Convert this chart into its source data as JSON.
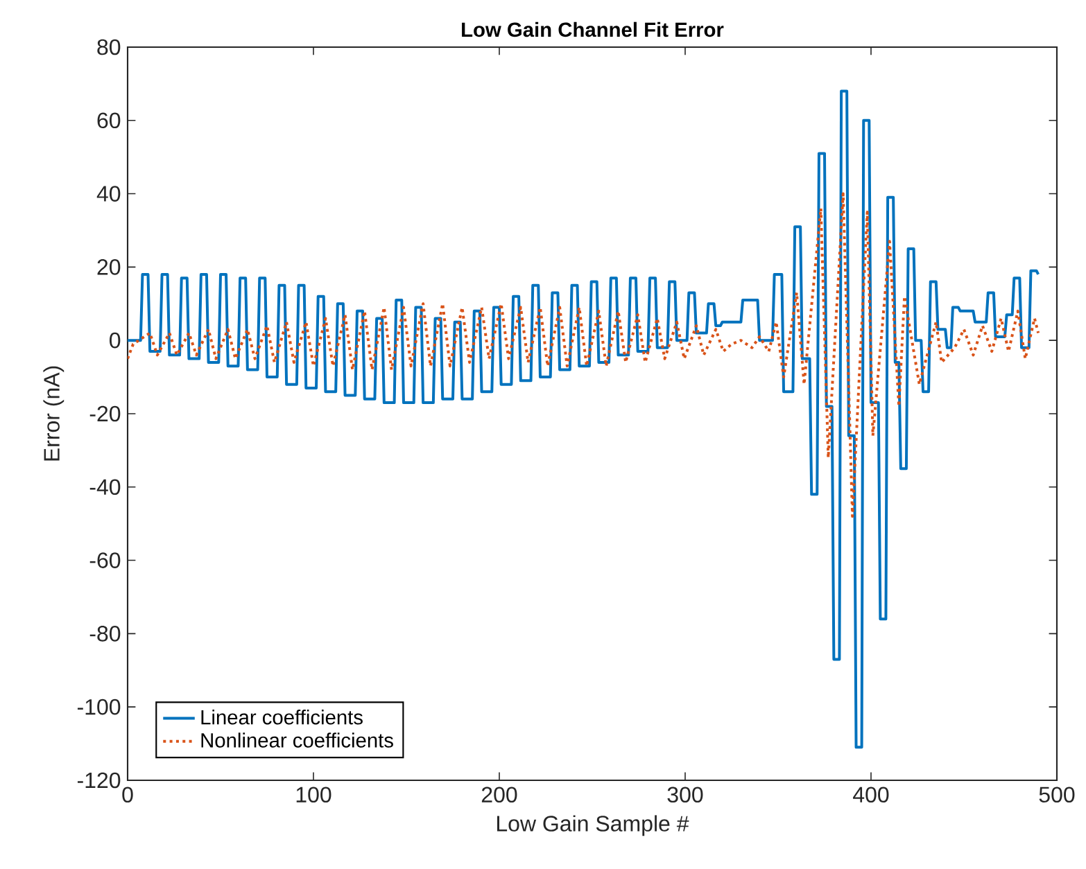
{
  "chart_data": {
    "type": "line",
    "title": "Low Gain Channel Fit Error",
    "xlabel": "Low Gain Sample #",
    "ylabel": "Error (nA)",
    "xlim": [
      0,
      500
    ],
    "ylim": [
      -120,
      80
    ],
    "xticks": [
      0,
      100,
      200,
      300,
      400,
      500
    ],
    "yticks": [
      -120,
      -100,
      -80,
      -60,
      -40,
      -20,
      0,
      20,
      40,
      60,
      80
    ],
    "grid": false,
    "legend": "bottom left",
    "marker": "none",
    "series": [
      {
        "name": "Linear coefficients",
        "color": "#0072bd",
        "line_style": "solid",
        "x": [
          0,
          7,
          8,
          11,
          12,
          17.5,
          18.5,
          21.5,
          22.5,
          28,
          29,
          32,
          33,
          38.5,
          39.5,
          42.5,
          43.5,
          49,
          50,
          53,
          54,
          59.5,
          60.5,
          63.5,
          64.5,
          70,
          71,
          74,
          75,
          80.5,
          81.5,
          84.5,
          85.5,
          91,
          92,
          95,
          96,
          101.5,
          102.5,
          105.5,
          106.5,
          112,
          113,
          116,
          117,
          122.5,
          123.5,
          126.5,
          127.5,
          133,
          134,
          137,
          138,
          143.5,
          144.5,
          147.5,
          148.5,
          154,
          155,
          158,
          159,
          164.5,
          165.5,
          168.5,
          169.5,
          175,
          176,
          179,
          180,
          185.5,
          186.5,
          189.5,
          190.5,
          196,
          197,
          200,
          201,
          206.5,
          207.5,
          210.5,
          211.5,
          217,
          218,
          221,
          222,
          227.5,
          228.5,
          231.5,
          232.5,
          238,
          239,
          242,
          243,
          248.5,
          249.5,
          252.5,
          253.5,
          259,
          260,
          263,
          264,
          269.5,
          270.5,
          273.5,
          274.5,
          280,
          281,
          284,
          285,
          290.5,
          291.5,
          294.5,
          295.5,
          301,
          302,
          305,
          306,
          311.5,
          312.5,
          315.5,
          316.5,
          319,
          320,
          330,
          331,
          339,
          340,
          347,
          348,
          352,
          353,
          358,
          359,
          362,
          363,
          367,
          368,
          371,
          372,
          375,
          376,
          379,
          380,
          383,
          384,
          387,
          388,
          391,
          392,
          395,
          396,
          399,
          400,
          404,
          405,
          408,
          409,
          412,
          413,
          415,
          416,
          419,
          420,
          423,
          424,
          427,
          428,
          431,
          432,
          435,
          436,
          440,
          441,
          443,
          444,
          447,
          448,
          455,
          456,
          462,
          463,
          466,
          467,
          472,
          473,
          476,
          477,
          480,
          481,
          485,
          486,
          489,
          490
        ],
        "values": [
          0,
          0,
          18,
          18,
          -3,
          -3,
          18,
          18,
          -4,
          -4,
          17,
          17,
          -5,
          -5,
          18,
          18,
          -6,
          -6,
          18,
          18,
          -7,
          -7,
          17,
          17,
          -8,
          -8,
          17,
          17,
          -10,
          -10,
          15,
          15,
          -12,
          -12,
          15,
          15,
          -13,
          -13,
          12,
          12,
          -14,
          -14,
          10,
          10,
          -15,
          -15,
          8,
          8,
          -16,
          -16,
          6,
          6,
          -17,
          -17,
          11,
          11,
          -17,
          -17,
          9,
          9,
          -17,
          -17,
          6,
          6,
          -16,
          -16,
          5,
          5,
          -16,
          -16,
          8,
          8,
          -14,
          -14,
          9,
          9,
          -12,
          -12,
          12,
          12,
          -11,
          -11,
          15,
          15,
          -10,
          -10,
          13,
          13,
          -8,
          -8,
          15,
          15,
          -7,
          -7,
          16,
          16,
          -6,
          -6,
          17,
          17,
          -4,
          -4,
          17,
          17,
          -3,
          -3,
          17,
          17,
          -2,
          -2,
          16,
          16,
          0,
          0,
          13,
          13,
          2,
          2,
          10,
          10,
          4,
          4,
          5,
          5,
          11,
          11,
          0,
          0,
          18,
          18,
          -14,
          -14,
          31,
          31,
          -5,
          -5,
          -42,
          -42,
          51,
          51,
          -18,
          -18,
          -87,
          -87,
          68,
          68,
          -26,
          -26,
          -111,
          -111,
          60,
          60,
          -17,
          -17,
          -76,
          -76,
          39,
          39,
          -6,
          -6,
          -35,
          -35,
          25,
          25,
          0,
          0,
          -14,
          -14,
          16,
          16,
          3,
          3,
          -2,
          -2,
          9,
          9,
          8,
          8,
          5,
          5,
          13,
          13,
          1,
          1,
          7,
          7,
          17,
          17,
          -2,
          -2,
          19,
          19,
          18
        ]
      },
      {
        "name": "Nonlinear coefficients",
        "color": "#d95319",
        "line_style": "dotted",
        "x": [
          0,
          3,
          6,
          12,
          16,
          22.5,
          26.5,
          33,
          37,
          43.5,
          47.5,
          54,
          58,
          64.5,
          68.5,
          75,
          79,
          85.5,
          89.5,
          96,
          100,
          106.5,
          110.5,
          117,
          121,
          127.5,
          131.5,
          138,
          142,
          148.5,
          152.5,
          159,
          163,
          169.5,
          173.5,
          180,
          184,
          190.5,
          194.5,
          201,
          205,
          211.5,
          215.5,
          222,
          226,
          232.5,
          236.5,
          243,
          247,
          253.5,
          257.5,
          264,
          268,
          274.5,
          278.5,
          285,
          289,
          295.5,
          299.5,
          306,
          310,
          316.5,
          320.5,
          325,
          330,
          336,
          340,
          345,
          349,
          353,
          360,
          364,
          373,
          377,
          385,
          390,
          398,
          401,
          410,
          415,
          418,
          426,
          435,
          438,
          445,
          450,
          455,
          460,
          465,
          470,
          474,
          479,
          483,
          488,
          490
        ],
        "values": [
          -5,
          -1,
          0,
          2,
          -4,
          2,
          -4,
          2,
          -4,
          3,
          -5,
          3,
          -5,
          3,
          -5,
          4,
          -6,
          5,
          -6,
          5,
          -7,
          6,
          -7,
          7,
          -8,
          8,
          -8,
          9,
          -8,
          9,
          -7,
          10,
          -7,
          10,
          -7,
          9,
          -6,
          9,
          -5,
          10,
          -5,
          9,
          -6,
          9,
          -7,
          9,
          -7,
          9,
          -7,
          8,
          -7,
          8,
          -6,
          7,
          -6,
          6,
          -5,
          5,
          -5,
          4,
          -4,
          3,
          -3,
          -1,
          0,
          -2,
          1,
          -3,
          5,
          -10,
          13,
          -12,
          36,
          -32,
          40,
          -48,
          35,
          -26,
          27,
          -18,
          12,
          -12,
          5,
          -6,
          -2,
          3,
          -4,
          4,
          -3,
          6,
          -3,
          8,
          -5,
          6,
          2
        ]
      }
    ]
  }
}
